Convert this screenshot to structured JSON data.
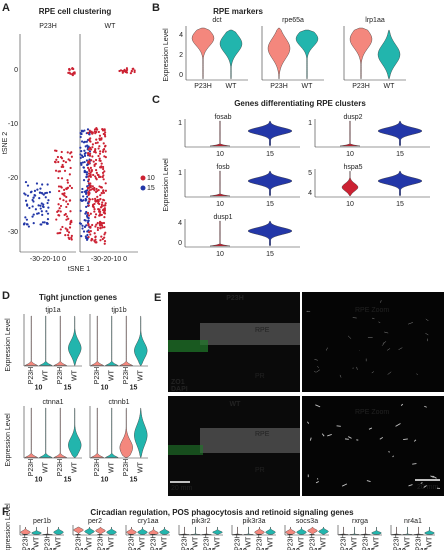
{
  "panels": {
    "A": {
      "label": "A",
      "title": "RPE cell clustering",
      "facets": [
        "P23H",
        "WT"
      ],
      "y_label": "tSNE 2",
      "x_label": "tSNE 1",
      "y_ticks": [
        "0",
        "-10",
        "-20",
        "-30"
      ],
      "x_ticks": [
        "-30-20-10 0",
        "-30-20-10 0"
      ],
      "legend": [
        "10",
        "15"
      ]
    },
    "B": {
      "label": "B",
      "title": "RPE markers",
      "y_label": "Expression Level",
      "y_ticks": [
        "4",
        "2",
        "0"
      ],
      "groups": [
        "P23H",
        "WT"
      ],
      "genes": [
        "dct",
        "rpe65a",
        "lrp1aa"
      ]
    },
    "C": {
      "label": "C",
      "title": "Genes differentiating RPE clusters",
      "y_label": "Expression Level",
      "groups": [
        "10",
        "15"
      ],
      "plots": [
        {
          "gene": "fosab",
          "y_ticks": [
            "1"
          ]
        },
        {
          "gene": "dusp2",
          "y_ticks": [
            "1"
          ]
        },
        {
          "gene": "fosb",
          "y_ticks": [
            "1"
          ]
        },
        {
          "gene": "hspa5",
          "y_ticks": [
            "5",
            "4"
          ]
        },
        {
          "gene": "dusp1",
          "y_ticks": [
            "4",
            "0"
          ]
        }
      ]
    },
    "D": {
      "label": "D",
      "title": "Tight junction genes",
      "y_label": "Expression Level",
      "x_labels": [
        "P23H",
        "WT",
        "P23H",
        "WT"
      ],
      "clusters": [
        "10",
        "15"
      ],
      "genes": [
        "tjp1a",
        "tjp1b",
        "ctnna1",
        "ctnnb1"
      ]
    },
    "E": {
      "label": "E",
      "top": {
        "condition": "P23H",
        "rpe": "RPE",
        "zoom": "RPE Zoom",
        "pr": "PR",
        "stain1": "ZO1",
        "stain2": "DAPI"
      },
      "bottom": {
        "condition": "WT",
        "rpe": "RPE",
        "zoom": "RPE Zoom",
        "pr": "PR",
        "scale_left": "20 mm",
        "scale_right": "20 mm"
      }
    },
    "F": {
      "label": "F",
      "title": "Circadian regulation, POS phagocytosis and retinoid signaling genes",
      "y_label": "Expression Level",
      "x_labels": [
        "P23H",
        "WT",
        "P23H",
        "WT"
      ],
      "clusters": [
        "10",
        "15"
      ],
      "genes": [
        "per1b",
        "per2",
        "cry1aa",
        "pik3r2",
        "pik3r3a",
        "socs3a",
        "rxrga",
        "nr4a1"
      ]
    }
  }
}
